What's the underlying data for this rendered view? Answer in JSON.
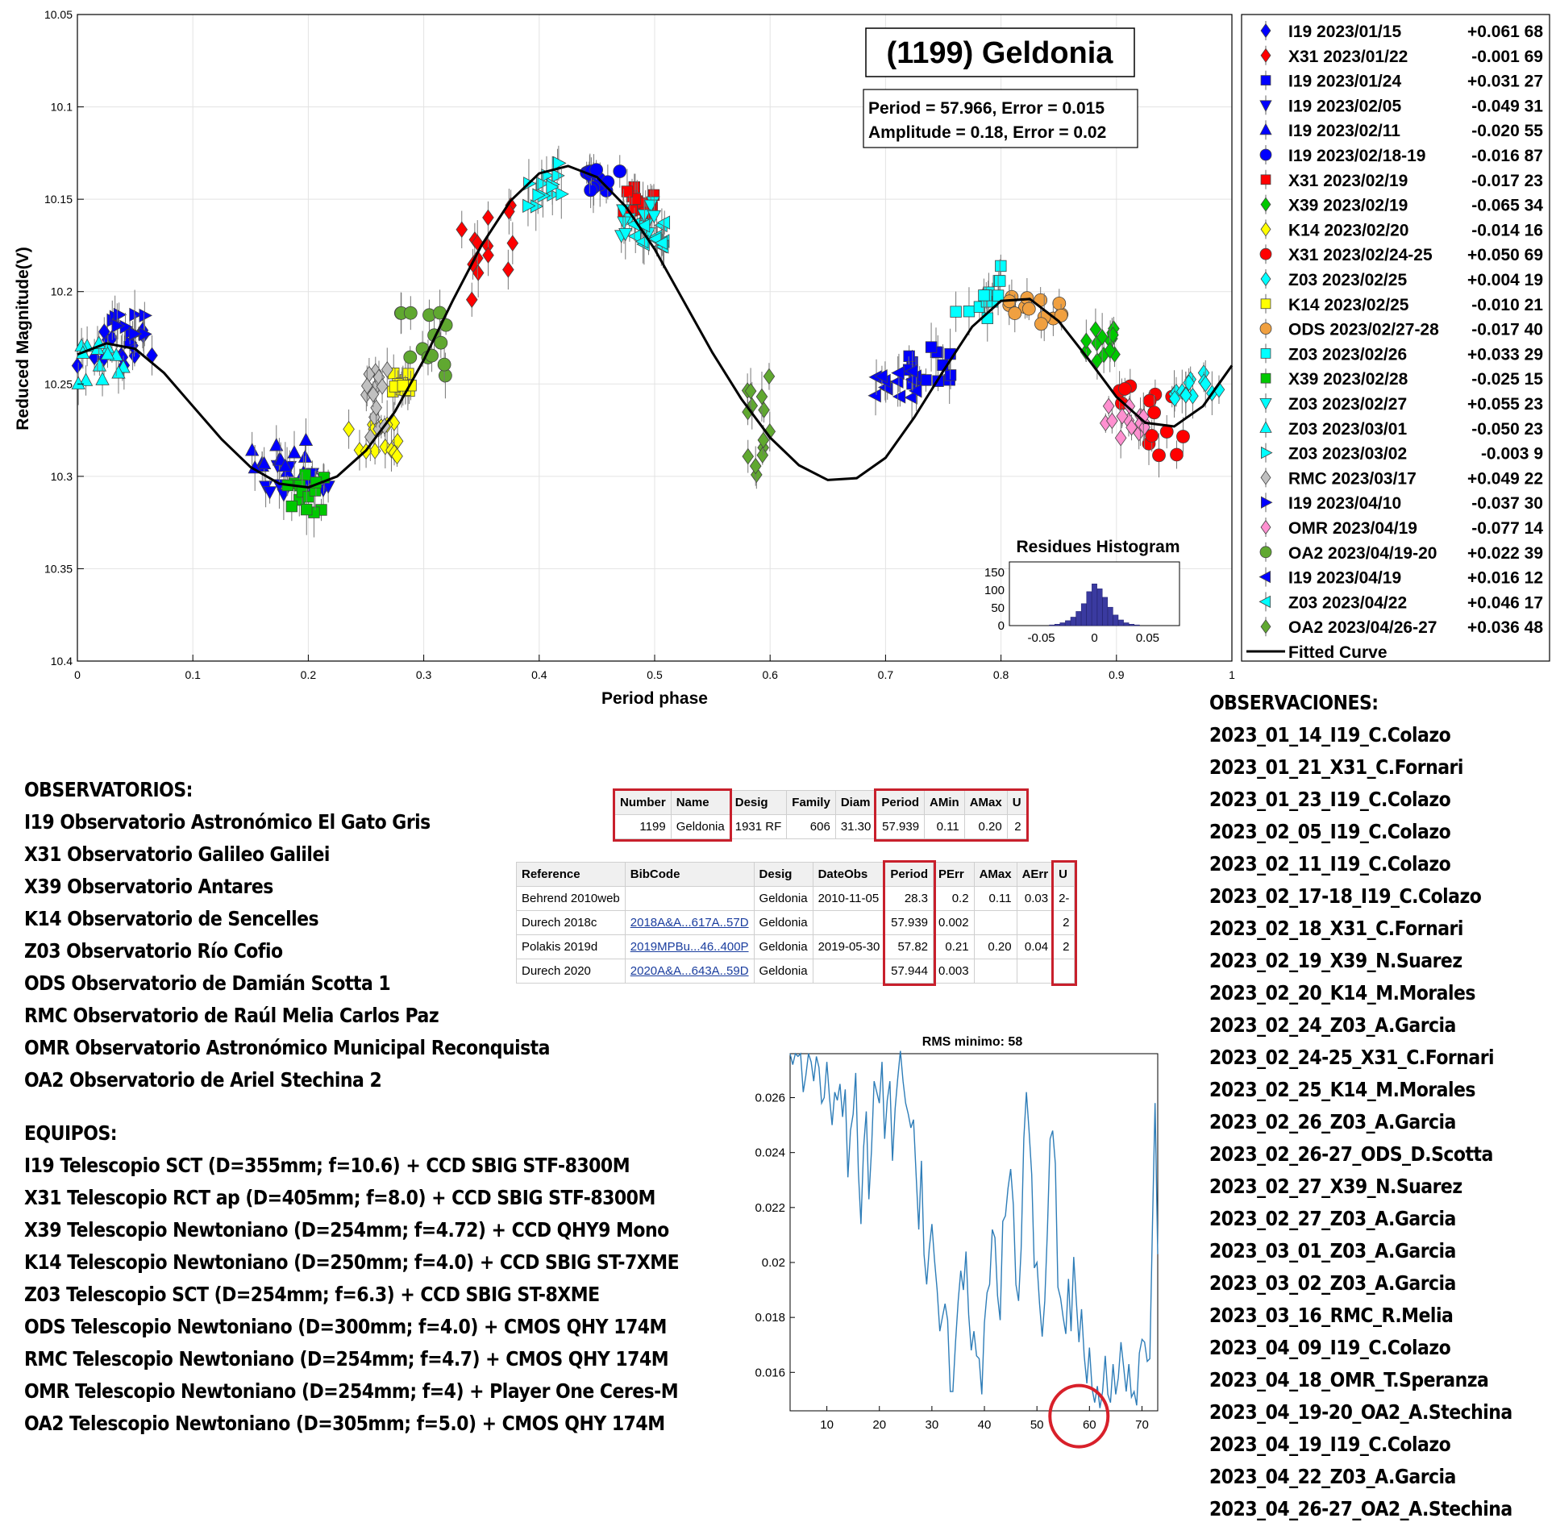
{
  "chart_data": [
    {
      "type": "scatter",
      "title": "(1199) Geldonia",
      "xlabel": "Period phase",
      "ylabel": "Reduced Magnitude(V)",
      "xlim": [
        0,
        1
      ],
      "ylim": [
        10.05,
        10.4
      ],
      "y_reversed": true,
      "grid": true,
      "xticks": [
        "0",
        "0.1",
        "0.2",
        "0.3",
        "0.4",
        "0.5",
        "0.6",
        "0.7",
        "0.8",
        "0.9",
        "1"
      ],
      "yticks": [
        "10.05",
        "10.1",
        "10.15",
        "10.2",
        "10.25",
        "10.3",
        "10.35",
        "10.4"
      ],
      "info_lines": [
        "Period =  57.966, Error = 0.015",
        "Amplitude = 0.18, Error = 0.02"
      ],
      "legend_position": "outside-right",
      "fitted_curve": {
        "name": "Fitted Curve",
        "points": [
          [
            0,
            10.234
          ],
          [
            0.025,
            10.228
          ],
          [
            0.05,
            10.231
          ],
          [
            0.075,
            10.244
          ],
          [
            0.1,
            10.262
          ],
          [
            0.125,
            10.28
          ],
          [
            0.15,
            10.295
          ],
          [
            0.175,
            10.304
          ],
          [
            0.2,
            10.306
          ],
          [
            0.225,
            10.3
          ],
          [
            0.25,
            10.286
          ],
          [
            0.275,
            10.265
          ],
          [
            0.3,
            10.237
          ],
          [
            0.325,
            10.205
          ],
          [
            0.35,
            10.175
          ],
          [
            0.375,
            10.151
          ],
          [
            0.4,
            10.136
          ],
          [
            0.425,
            10.132
          ],
          [
            0.45,
            10.138
          ],
          [
            0.475,
            10.154
          ],
          [
            0.5,
            10.177
          ],
          [
            0.525,
            10.205
          ],
          [
            0.55,
            10.233
          ],
          [
            0.575,
            10.258
          ],
          [
            0.6,
            10.279
          ],
          [
            0.625,
            10.294
          ],
          [
            0.65,
            10.302
          ],
          [
            0.675,
            10.301
          ],
          [
            0.7,
            10.29
          ],
          [
            0.725,
            10.268
          ],
          [
            0.75,
            10.243
          ],
          [
            0.775,
            10.219
          ],
          [
            0.8,
            10.205
          ],
          [
            0.825,
            10.204
          ],
          [
            0.85,
            10.216
          ],
          [
            0.875,
            10.236
          ],
          [
            0.9,
            10.257
          ],
          [
            0.925,
            10.271
          ],
          [
            0.95,
            10.273
          ],
          [
            0.975,
            10.262
          ],
          [
            1,
            10.24
          ]
        ]
      },
      "series": [
        {
          "name": "I19 2023/01/15",
          "offset": "+0.061 68",
          "color": "#0000ff",
          "marker": "diamond",
          "x_range": [
            0.0,
            0.07
          ],
          "y_center": 10.23,
          "y_spread": 0.012
        },
        {
          "name": "X31 2023/01/22",
          "offset": "-0.001 69",
          "color": "#ff0000",
          "marker": "diamond",
          "x_range": [
            0.33,
            0.38
          ],
          "y_center": 10.18,
          "y_spread": 0.03
        },
        {
          "name": "I19 2023/01/24",
          "offset": "+0.031 27",
          "color": "#0000ff",
          "marker": "square",
          "x_range": [
            0.72,
            0.76
          ],
          "y_center": 10.24,
          "y_spread": 0.01
        },
        {
          "name": "I19 2023/02/05",
          "offset": "-0.049 31",
          "color": "#0000ff",
          "marker": "triangle-down",
          "x_range": [
            0.16,
            0.22
          ],
          "y_center": 10.3,
          "y_spread": 0.01
        },
        {
          "name": "I19 2023/02/11",
          "offset": "-0.020 55",
          "color": "#0000ff",
          "marker": "triangle-up",
          "x_range": [
            0.15,
            0.2
          ],
          "y_center": 10.29,
          "y_spread": 0.01
        },
        {
          "name": "I19 2023/02/18-19",
          "offset": "-0.016 87",
          "color": "#0000ff",
          "marker": "circle",
          "x_range": [
            0.44,
            0.47
          ],
          "y_center": 10.14,
          "y_spread": 0.006
        },
        {
          "name": "X31 2023/02/19",
          "offset": "-0.017 23",
          "color": "#ff0000",
          "marker": "square",
          "x_range": [
            0.47,
            0.5
          ],
          "y_center": 10.15,
          "y_spread": 0.008
        },
        {
          "name": "X39 2023/02/19",
          "offset": "-0.065 34",
          "color": "#00c800",
          "marker": "diamond",
          "x_range": [
            0.87,
            0.9
          ],
          "y_center": 10.23,
          "y_spread": 0.01
        },
        {
          "name": "K14 2023/02/20",
          "offset": "-0.014 16",
          "color": "#ffff00",
          "marker": "diamond",
          "x_range": [
            0.22,
            0.28
          ],
          "y_center": 10.28,
          "y_spread": 0.01
        },
        {
          "name": "X31 2023/02/24-25",
          "offset": "+0.050 69",
          "color": "#ff0000",
          "marker": "circle",
          "x_range": [
            0.9,
            0.96
          ],
          "y_center": 10.27,
          "y_spread": 0.02
        },
        {
          "name": "Z03 2023/02/25",
          "offset": "+0.004 19",
          "color": "#00ffff",
          "marker": "diamond",
          "x_range": [
            0.95,
            0.99
          ],
          "y_center": 10.25,
          "y_spread": 0.008
        },
        {
          "name": "K14 2023/02/25",
          "offset": "-0.010 21",
          "color": "#ffff00",
          "marker": "square",
          "x_range": [
            0.27,
            0.29
          ],
          "y_center": 10.25,
          "y_spread": 0.006
        },
        {
          "name": "ODS 2023/02/27-28",
          "offset": "-0.017 40",
          "color": "#f0a040",
          "marker": "circle",
          "x_range": [
            0.8,
            0.86
          ],
          "y_center": 10.21,
          "y_spread": 0.008
        },
        {
          "name": "Z03 2023/02/26",
          "offset": "+0.033 29",
          "color": "#00ffff",
          "marker": "square",
          "x_range": [
            0.76,
            0.8
          ],
          "y_center": 10.2,
          "y_spread": 0.015
        },
        {
          "name": "X39 2023/02/28",
          "offset": "-0.025 15",
          "color": "#00c800",
          "marker": "square",
          "x_range": [
            0.18,
            0.22
          ],
          "y_center": 10.31,
          "y_spread": 0.012
        },
        {
          "name": "Z03 2023/02/27",
          "offset": "+0.055 23",
          "color": "#00ffff",
          "marker": "triangle-down",
          "x_range": [
            0.47,
            0.5
          ],
          "y_center": 10.16,
          "y_spread": 0.01
        },
        {
          "name": "Z03 2023/03/01",
          "offset": "-0.050 23",
          "color": "#00ffff",
          "marker": "triangle-up",
          "x_range": [
            0.0,
            0.04
          ],
          "y_center": 10.24,
          "y_spread": 0.012
        },
        {
          "name": "Z03 2023/03/02",
          "offset": "-0.003 9",
          "color": "#00ffff",
          "marker": "triangle-right",
          "x_range": [
            0.39,
            0.42
          ],
          "y_center": 10.14,
          "y_spread": 0.015
        },
        {
          "name": "RMC 2023/03/17",
          "offset": "+0.049 22",
          "color": "#c0c0c0",
          "marker": "diamond",
          "x_range": [
            0.25,
            0.27
          ],
          "y_center": 10.26,
          "y_spread": 0.02
        },
        {
          "name": "I19 2023/04/10",
          "offset": "-0.037 30",
          "color": "#0000ff",
          "marker": "triangle-right",
          "x_range": [
            0.03,
            0.06
          ],
          "y_center": 10.22,
          "y_spread": 0.008
        },
        {
          "name": "OMR 2023/04/19",
          "offset": "-0.077 14",
          "color": "#ff90d0",
          "marker": "diamond",
          "x_range": [
            0.89,
            0.93
          ],
          "y_center": 10.27,
          "y_spread": 0.01
        },
        {
          "name": "OA2 2023/04/19-20",
          "offset": "+0.022 39",
          "color": "#60a830",
          "marker": "circle",
          "x_range": [
            0.28,
            0.32
          ],
          "y_center": 10.23,
          "y_spread": 0.02
        },
        {
          "name": "I19 2023/04/19",
          "offset": "+0.016 12",
          "color": "#0000ff",
          "marker": "triangle-left",
          "x_range": [
            0.69,
            0.73
          ],
          "y_center": 10.25,
          "y_spread": 0.008
        },
        {
          "name": "Z03 2023/04/22",
          "offset": "+0.046 17",
          "color": "#00ffff",
          "marker": "triangle-left",
          "x_range": [
            0.48,
            0.51
          ],
          "y_center": 10.17,
          "y_spread": 0.008
        },
        {
          "name": "OA2 2023/04/26-27",
          "offset": "+0.036 48",
          "color": "#60a830",
          "marker": "diamond",
          "x_range": [
            0.58,
            0.6
          ],
          "y_center": 10.27,
          "y_spread": 0.03
        }
      ]
    },
    {
      "type": "bar",
      "title": "Residues Histogram",
      "xlim": [
        -0.08,
        0.08
      ],
      "ylim": [
        0,
        180
      ],
      "xticks": [
        "-0.05",
        "0",
        "0.05"
      ],
      "yticks": [
        "0",
        "50",
        "100",
        "150"
      ],
      "color": "#3a3aa0",
      "x": [
        -0.04,
        -0.035,
        -0.03,
        -0.025,
        -0.02,
        -0.015,
        -0.01,
        -0.005,
        0,
        0.005,
        0.01,
        0.015,
        0.02,
        0.025,
        0.03,
        0.035,
        0.04
      ],
      "values": [
        2,
        4,
        8,
        14,
        24,
        40,
        62,
        96,
        118,
        104,
        80,
        52,
        30,
        16,
        8,
        4,
        2
      ]
    },
    {
      "type": "line",
      "title": "RMS minimo: 58",
      "xlim": [
        3,
        73
      ],
      "ylim": [
        0.0146,
        0.0276
      ],
      "xticks": [
        "10",
        "20",
        "30",
        "40",
        "50",
        "60",
        "70"
      ],
      "yticks": [
        "0.016",
        "0.018",
        "0.02",
        "0.022",
        "0.024",
        "0.026"
      ],
      "color": "#2e7db8",
      "highlight": {
        "x": 58,
        "y": 0.0147
      },
      "x": [
        3,
        3.5,
        4,
        4.5,
        5,
        5.5,
        6,
        6.5,
        7,
        7.5,
        8,
        8.5,
        9,
        9.5,
        10,
        10.5,
        11,
        11.5,
        12,
        12.5,
        13,
        13.5,
        14,
        14.5,
        15,
        15.5,
        16,
        16.5,
        17,
        17.5,
        18,
        18.5,
        19,
        19.5,
        20,
        20.5,
        21,
        21.5,
        22,
        22.5,
        23,
        23.5,
        24,
        24.5,
        25,
        25.5,
        26,
        26.5,
        27,
        27.5,
        28,
        28.5,
        29,
        29.5,
        30,
        30.5,
        31,
        31.5,
        32,
        32.5,
        33,
        33.5,
        34,
        34.5,
        35,
        35.5,
        36,
        36.5,
        37,
        37.5,
        38,
        38.5,
        39,
        39.5,
        40,
        40.5,
        41,
        41.5,
        42,
        42.5,
        43,
        43.5,
        44,
        44.5,
        45,
        45.5,
        46,
        46.5,
        47,
        47.5,
        48,
        48.5,
        49,
        49.5,
        50,
        50.5,
        51,
        51.5,
        52,
        52.5,
        53,
        53.5,
        54,
        54.5,
        55,
        55.5,
        56,
        56.5,
        57,
        57.5,
        58,
        58.5,
        59,
        59.5,
        60,
        60.5,
        61,
        61.5,
        62,
        62.5,
        63,
        63.5,
        64,
        64.5,
        65,
        65.5,
        66,
        66.5,
        67,
        67.5,
        68,
        68.5,
        69,
        69.5,
        70,
        70.5,
        71,
        71.5,
        72,
        72.5,
        73
      ],
      "values": [
        0.0276,
        0.0272,
        0.0276,
        0.0275,
        0.0276,
        0.0262,
        0.0268,
        0.0276,
        0.0273,
        0.0266,
        0.0275,
        0.0271,
        0.0258,
        0.026,
        0.0273,
        0.026,
        0.025,
        0.0262,
        0.0259,
        0.0265,
        0.0253,
        0.0263,
        0.0231,
        0.0248,
        0.0254,
        0.0269,
        0.0233,
        0.0214,
        0.0242,
        0.0255,
        0.0223,
        0.0241,
        0.0266,
        0.0262,
        0.0258,
        0.0273,
        0.0245,
        0.0259,
        0.0266,
        0.0237,
        0.0256,
        0.0267,
        0.0277,
        0.0266,
        0.0258,
        0.0254,
        0.0249,
        0.0252,
        0.0232,
        0.0212,
        0.0237,
        0.0203,
        0.0192,
        0.0205,
        0.0214,
        0.0201,
        0.019,
        0.0175,
        0.018,
        0.0185,
        0.0179,
        0.0153,
        0.0153,
        0.0171,
        0.0186,
        0.0197,
        0.019,
        0.0204,
        0.0181,
        0.0168,
        0.0175,
        0.0166,
        0.0165,
        0.0152,
        0.0178,
        0.0189,
        0.0192,
        0.0212,
        0.0209,
        0.0188,
        0.0179,
        0.0215,
        0.0217,
        0.0227,
        0.0234,
        0.0221,
        0.0192,
        0.0186,
        0.0205,
        0.0245,
        0.0262,
        0.0248,
        0.0232,
        0.0198,
        0.02,
        0.0185,
        0.0173,
        0.0186,
        0.0212,
        0.0245,
        0.0248,
        0.0236,
        0.0191,
        0.0187,
        0.018,
        0.0174,
        0.0194,
        0.0175,
        0.0202,
        0.0186,
        0.0171,
        0.0183,
        0.0166,
        0.0156,
        0.0169,
        0.0154,
        0.0149,
        0.0155,
        0.0147,
        0.0153,
        0.0166,
        0.0152,
        0.0149,
        0.0163,
        0.0152,
        0.0158,
        0.0171,
        0.0162,
        0.0153,
        0.0163,
        0.0151,
        0.0153,
        0.0148,
        0.0167,
        0.0172,
        0.0171,
        0.0164,
        0.0165,
        0.0214,
        0.0258,
        0.0203
      ]
    }
  ],
  "observatorios": {
    "title": "OBSERVATORIOS:",
    "items": [
      "I19 Observatorio Astronómico El Gato Gris",
      "X31 Observatorio Galileo Galilei",
      "X39 Observatorio Antares",
      "K14 Observatorio de Sencelles",
      "Z03 Observatorio Río Cofio",
      "ODS Observatorio de Damián Scotta 1",
      "RMC Observatorio de Raúl Melia Carlos Paz",
      "OMR Observatorio Astronómico Municipal Reconquista",
      "OA2 Observatorio de Ariel Stechina 2"
    ]
  },
  "equipos": {
    "title": "EQUIPOS:",
    "items": [
      "I19 Telescopio SCT (D=355mm; f=10.6) + CCD SBIG STF-8300M",
      "X31 Telescopio RCT ap (D=405mm; f=8.0) + CCD SBIG STF-8300M",
      "X39 Telescopio Newtoniano (D=254mm; f=4.72) + CCD QHY9 Mono",
      "K14 Telescopio Newtoniano (D=250mm; f=4.0) + CCD SBIG ST-7XME",
      "Z03 Telescopio SCT (D=254mm; f=6.3) + CCD SBIG ST-8XME",
      "ODS Telescopio Newtoniano (D=300mm; f=4.0) + CMOS QHY 174M",
      "RMC Telescopio Newtoniano (D=254mm; f=4.7) + CMOS QHY 174M",
      "OMR Telescopio Newtoniano (D=254mm; f=4) + Player One Ceres-M",
      "OA2 Telescopio Newtoniano (D=305mm; f=5.0) + CMOS QHY 174M"
    ]
  },
  "observaciones": {
    "title": "OBSERVACIONES:",
    "items": [
      "2023_01_14_I19_C.Colazo",
      "2023_01_21_X31_C.Fornari",
      "2023_01_23_I19_C.Colazo",
      "2023_02_05_I19_C.Colazo",
      "2023_02_11_I19_C.Colazo",
      "2023_02_17-18_I19_C.Colazo",
      "2023_02_18_X31_C.Fornari",
      "2023_02_19_X39_N.Suarez",
      "2023_02_20_K14_M.Morales",
      "2023_02_24_Z03_A.Garcia",
      "2023_02_24-25_X31_C.Fornari",
      "2023_02_25_K14_M.Morales",
      "2023_02_26_Z03_A.Garcia",
      "2023_02_26-27_ODS_D.Scotta",
      "2023_02_27_X39_N.Suarez",
      "2023_02_27_Z03_A.Garcia",
      "2023_03_01_Z03_A.Garcia",
      "2023_03_02_Z03_A.Garcia",
      "2023_03_16_RMC_R.Melia",
      "2023_04_09_I19_C.Colazo",
      "2023_04_18_OMR_T.Speranza",
      "2023_04_19-20_OA2_A.Stechina",
      "2023_04_19_I19_C.Colazo",
      "2023_04_22_Z03_A.Garcia",
      "2023_04_26-27_OA2_A.Stechina"
    ]
  },
  "lcdb_summary": {
    "headers": [
      "Number",
      "Name",
      "Desig",
      "Family",
      "Diam",
      "Period",
      "AMin",
      "AMax",
      "U"
    ],
    "row": [
      "1199",
      "Geldonia",
      "1931 RF",
      "606",
      "31.30",
      "57.939",
      "0.11",
      "0.20",
      "2"
    ]
  },
  "lcdb_refs": {
    "headers": [
      "Reference",
      "BibCode",
      "Desig",
      "DateObs",
      "Period",
      "PErr",
      "AMax",
      "AErr",
      "U"
    ],
    "rows": [
      [
        "Behrend 2010web",
        "",
        "Geldonia",
        "2010-11-05",
        "28.3",
        "0.2",
        "0.11",
        "0.03",
        "2-"
      ],
      [
        "Durech 2018c",
        "2018A&A...617A..57D",
        "Geldonia",
        "",
        "57.939",
        "0.002",
        "",
        "",
        "2"
      ],
      [
        "Polakis 2019d",
        "2019MPBu...46..400P",
        "Geldonia",
        "2019-05-30",
        "57.82",
        "0.21",
        "0.20",
        "0.04",
        "2"
      ],
      [
        "Durech 2020",
        "2020A&A...643A..59D",
        "Geldonia",
        "",
        "57.944",
        "0.003",
        "",
        "",
        ""
      ]
    ]
  }
}
